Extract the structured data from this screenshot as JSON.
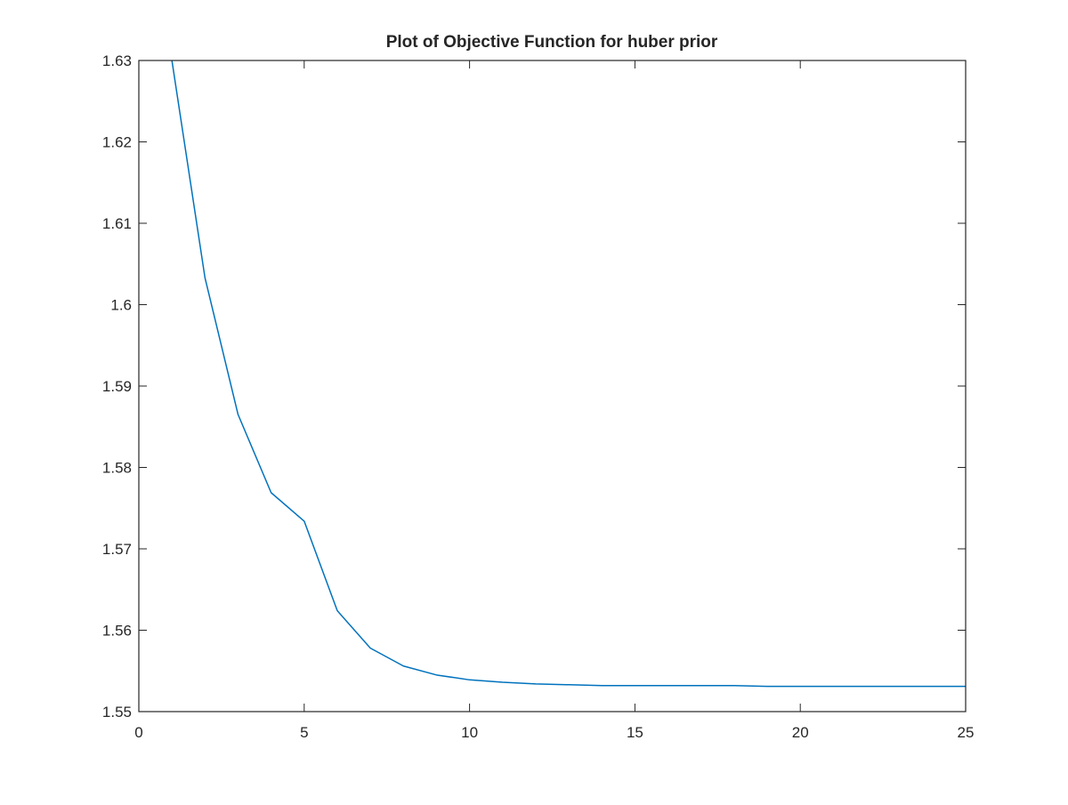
{
  "chart_data": {
    "type": "line",
    "title": "Plot of Objective Function for huber prior",
    "xlabel": "",
    "ylabel": "",
    "xlim": [
      0,
      25
    ],
    "ylim": [
      1.55,
      1.63
    ],
    "xticks": [
      0,
      5,
      10,
      15,
      20,
      25
    ],
    "xtick_labels": [
      "0",
      "5",
      "10",
      "15",
      "20",
      "25"
    ],
    "yticks": [
      1.55,
      1.56,
      1.57,
      1.58,
      1.59,
      1.6,
      1.61,
      1.62,
      1.63
    ],
    "ytick_labels": [
      "1.55",
      "1.56",
      "1.57",
      "1.58",
      "1.59",
      "1.6",
      "1.61",
      "1.62",
      "1.63"
    ],
    "grid": false,
    "legend": "none",
    "series": [
      {
        "color": "#0072BD",
        "x": [
          1,
          2,
          3,
          4,
          5,
          6,
          7,
          8,
          9,
          10,
          11,
          12,
          13,
          14,
          15,
          16,
          17,
          18,
          19,
          20,
          21,
          22,
          23,
          24,
          25
        ],
        "y": [
          1.63,
          1.6033,
          1.5865,
          1.5769,
          1.5734,
          1.5624,
          1.5578,
          1.5556,
          1.5545,
          1.5539,
          1.5536,
          1.5534,
          1.5533,
          1.5532,
          1.5532,
          1.5532,
          1.5532,
          1.5532,
          1.5531,
          1.5531,
          1.5531,
          1.5531,
          1.5531,
          1.5531,
          1.5531
        ]
      }
    ]
  }
}
